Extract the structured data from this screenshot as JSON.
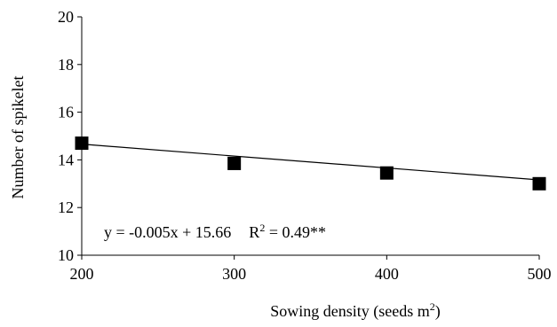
{
  "chart_data": {
    "type": "scatter",
    "title": "",
    "xlabel": "Sowing density (seeds m",
    "xlabel_sup": "2",
    "xlabel_suffix": ")",
    "ylabel": "Number of spikelet",
    "xlim": [
      200,
      500
    ],
    "ylim": [
      10,
      20
    ],
    "x_ticks": [
      "200",
      "300",
      "400",
      "500"
    ],
    "y_ticks": [
      "10",
      "12",
      "14",
      "16",
      "18",
      "20"
    ],
    "grid": false,
    "legend": "none",
    "series": [
      {
        "marker": "square",
        "color": "#000000",
        "x": [
          200,
          300,
          400,
          500
        ],
        "y": [
          14.7,
          13.85,
          13.45,
          13.0
        ]
      }
    ],
    "trendline": {
      "type": "linear",
      "slope": -0.005,
      "intercept": 15.66,
      "x_range": [
        200,
        500
      ]
    },
    "annotation": {
      "equation": "y = -0.005x + 15.66",
      "r2_prefix": "R",
      "r2_sup": "2",
      "r2_suffix": " = 0.49**"
    }
  }
}
